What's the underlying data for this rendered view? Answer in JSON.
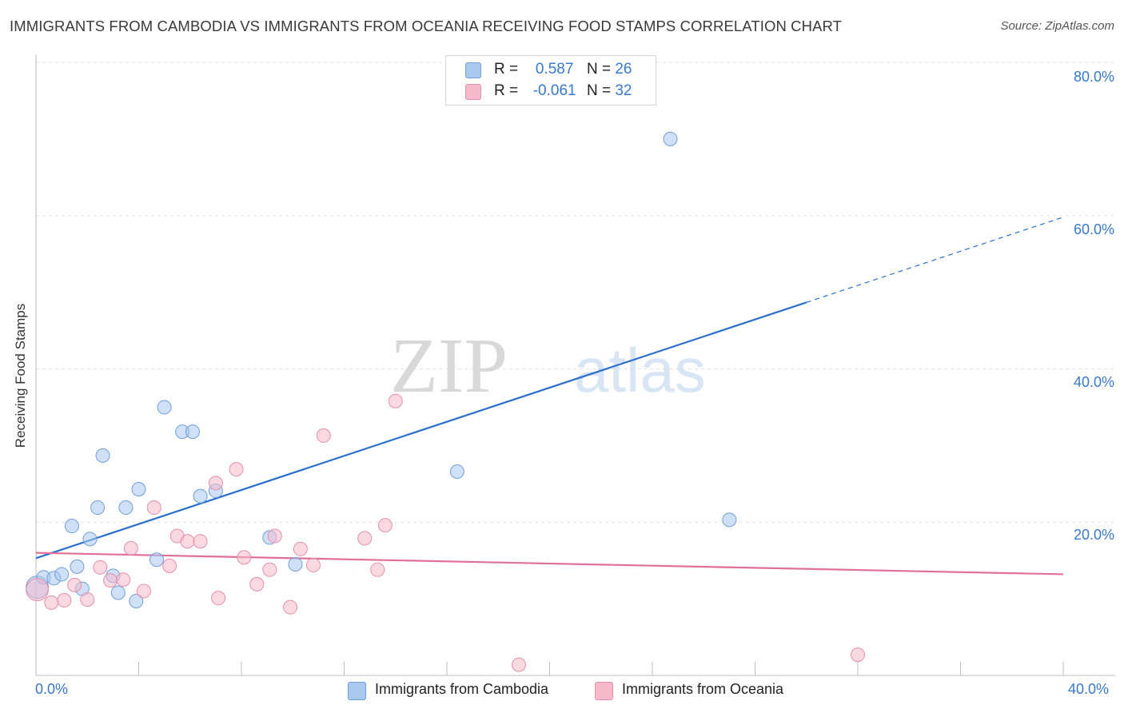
{
  "title": "IMMIGRANTS FROM CAMBODIA VS IMMIGRANTS FROM OCEANIA RECEIVING FOOD STAMPS CORRELATION CHART",
  "source": "Source: ZipAtlas.com",
  "watermark": {
    "zip": "ZIP",
    "atlas": "atlas"
  },
  "legend_top": [
    {
      "r_label": "R =",
      "r_value": "0.587",
      "n_label": "N =",
      "n_value": "26",
      "color": "#a9c8f0"
    },
    {
      "r_label": "R =",
      "r_value": "-0.061",
      "n_label": "N =",
      "n_value": "32",
      "color": "#f6b9cc"
    }
  ],
  "legend_bottom": [
    {
      "label": "Immigrants from Cambodia",
      "color": "#a9c8f0"
    },
    {
      "label": "Immigrants from Oceania",
      "color": "#f6b9cc"
    }
  ],
  "chart_data": {
    "type": "scatter",
    "title": "IMMIGRANTS FROM CAMBODIA VS IMMIGRANTS FROM OCEANIA RECEIVING FOOD STAMPS CORRELATION CHART",
    "xlabel": "",
    "ylabel": "Receiving Food Stamps",
    "xlim": [
      0,
      40
    ],
    "ylim": [
      0,
      80
    ],
    "x_tick_labels": [
      "0.0%",
      "40.0%"
    ],
    "y_tick_labels": [
      "20.0%",
      "40.0%",
      "60.0%",
      "80.0%"
    ],
    "y_ticks": [
      20,
      40,
      60,
      80
    ],
    "grid": true,
    "series": [
      {
        "name": "Immigrants from Cambodia",
        "color": "#a9c8f0",
        "stroke": "#6f9fd8",
        "trend_color": "#2a6fcd",
        "trend": {
          "x0": 0,
          "y0": 15.3,
          "x1": 40,
          "y1": 59.8,
          "solid_until": 30
        },
        "points": [
          [
            0.05,
            11.5
          ],
          [
            0.3,
            12.8
          ],
          [
            0.7,
            12.7
          ],
          [
            1.0,
            13.2
          ],
          [
            1.4,
            19.5
          ],
          [
            1.6,
            14.2
          ],
          [
            1.8,
            11.3
          ],
          [
            2.1,
            17.8
          ],
          [
            2.4,
            21.9
          ],
          [
            2.6,
            28.7
          ],
          [
            3.0,
            13.0
          ],
          [
            3.2,
            10.8
          ],
          [
            3.5,
            21.9
          ],
          [
            3.9,
            9.7
          ],
          [
            4.0,
            24.3
          ],
          [
            4.7,
            15.1
          ],
          [
            5.0,
            35.0
          ],
          [
            5.7,
            31.8
          ],
          [
            6.1,
            31.8
          ],
          [
            6.4,
            23.4
          ],
          [
            7.0,
            24.1
          ],
          [
            9.1,
            18.0
          ],
          [
            10.1,
            14.5
          ],
          [
            16.4,
            26.6
          ],
          [
            24.7,
            70.0
          ],
          [
            27.0,
            20.3
          ]
        ]
      },
      {
        "name": "Immigrants from Oceania",
        "color": "#f6b9cc",
        "stroke": "#e58fad",
        "trend_color": "#e0709a",
        "trend": {
          "x0": 0,
          "y0": 16.0,
          "x1": 40,
          "y1": 13.2,
          "solid_until": 40
        },
        "points": [
          [
            0.05,
            11.2
          ],
          [
            0.6,
            9.5
          ],
          [
            1.1,
            9.8
          ],
          [
            1.5,
            11.8
          ],
          [
            2.0,
            9.9
          ],
          [
            2.5,
            14.1
          ],
          [
            2.9,
            12.4
          ],
          [
            3.4,
            12.5
          ],
          [
            3.7,
            16.6
          ],
          [
            4.2,
            11.0
          ],
          [
            4.6,
            21.9
          ],
          [
            5.2,
            14.3
          ],
          [
            5.5,
            18.2
          ],
          [
            5.9,
            17.5
          ],
          [
            6.4,
            17.5
          ],
          [
            7.0,
            25.1
          ],
          [
            7.1,
            10.1
          ],
          [
            7.8,
            26.9
          ],
          [
            8.1,
            15.4
          ],
          [
            8.6,
            11.9
          ],
          [
            9.1,
            13.8
          ],
          [
            9.3,
            18.2
          ],
          [
            9.9,
            8.9
          ],
          [
            10.3,
            16.5
          ],
          [
            10.8,
            14.4
          ],
          [
            11.2,
            31.3
          ],
          [
            12.8,
            17.9
          ],
          [
            13.3,
            13.8
          ],
          [
            13.6,
            19.6
          ],
          [
            14.0,
            35.8
          ],
          [
            18.8,
            1.4
          ],
          [
            32.0,
            2.7
          ]
        ]
      }
    ]
  }
}
